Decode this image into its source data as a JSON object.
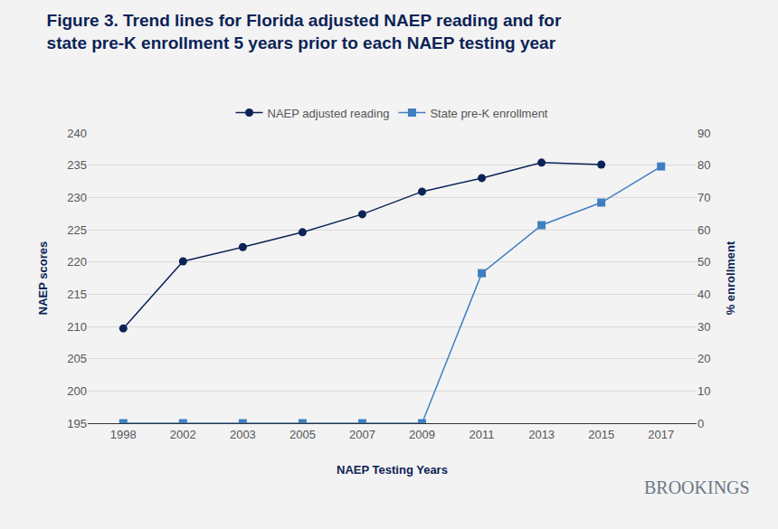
{
  "chart_data": {
    "type": "line",
    "title": "Figure 3. Trend lines for Florida adjusted NAEP reading and for state pre-K enrollment 5 years prior to each NAEP testing year",
    "x_label": "NAEP Testing Years",
    "y_label": "NAEP scores",
    "y2_label": "% enrollment",
    "categories": [
      "1998",
      "2002",
      "2003",
      "2005",
      "2007",
      "2009",
      "2011",
      "2013",
      "2015",
      "2017"
    ],
    "series": [
      {
        "name": "NAEP adjusted reading",
        "color": "#0b2356",
        "marker": "circle",
        "axis": "y",
        "values": [
          209.7,
          220.1,
          222.3,
          224.6,
          227.4,
          230.9,
          233.0,
          235.4,
          235.1,
          null
        ]
      },
      {
        "name": "State pre-K enrollment",
        "color": "#3f7fc0",
        "marker": "square",
        "axis": "y2",
        "values": [
          0,
          0,
          0,
          0,
          0,
          0,
          46.5,
          61.4,
          68.4,
          79.6
        ]
      }
    ],
    "ylim": [
      195,
      240
    ],
    "yticks": [
      195,
      200,
      205,
      210,
      215,
      220,
      225,
      230,
      235,
      240
    ],
    "y2lim": [
      0,
      90
    ],
    "y2ticks": [
      0,
      10,
      20,
      30,
      40,
      50,
      60,
      70,
      80,
      90
    ],
    "grid": true,
    "legend": "top",
    "annotations": [
      {
        "text": "BROOKINGS"
      }
    ]
  }
}
